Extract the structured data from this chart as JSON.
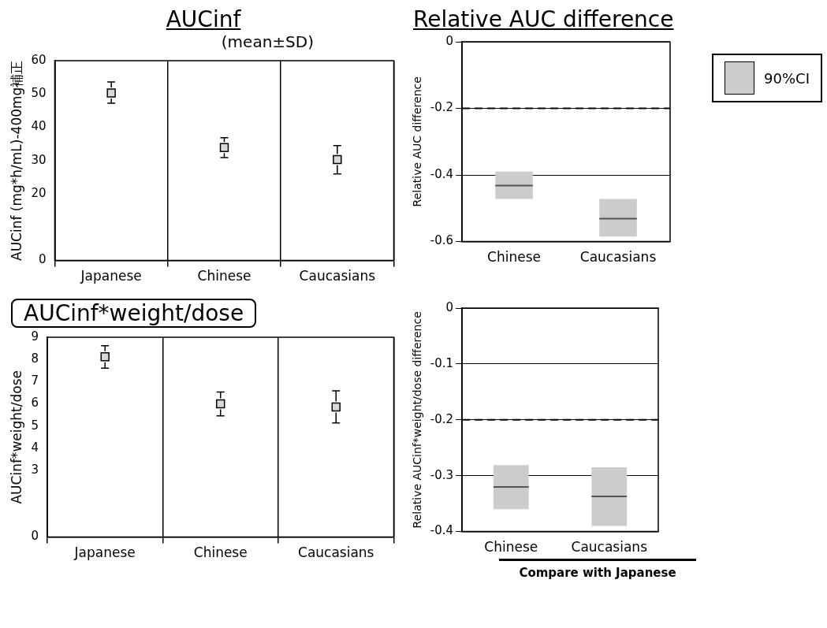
{
  "chart_data": [
    {
      "type": "scatter",
      "title": "AUCinf",
      "subtitle": "(mean±SD)",
      "ylabel": "AUCinf (mg*h/mL)-400mg補正",
      "categories": [
        "Japanese",
        "Chinese",
        "Caucasians"
      ],
      "values": [
        50.3,
        33.9,
        30.3
      ],
      "errors": [
        [
          47.2,
          53.6
        ],
        [
          30.9,
          36.9
        ],
        [
          26.0,
          34.5
        ]
      ],
      "color": "#d9d9d9",
      "marker": "square",
      "ylim": [
        0,
        60
      ],
      "yticks": [
        0,
        20,
        30,
        40,
        50,
        60
      ],
      "grid": "x"
    },
    {
      "type": "box",
      "title": "Relative AUC difference",
      "ylabel": "Relative AUC difference",
      "categories": [
        "Chinese",
        "Caucasians"
      ],
      "series": [
        {
          "name": "90%CI",
          "color": "#cccccc",
          "boxes": [
            {
              "low": -0.472,
              "q1": -0.472,
              "median": -0.432,
              "q3": -0.39,
              "high": -0.39
            },
            {
              "low": -0.585,
              "q1": -0.585,
              "median": -0.531,
              "q3": -0.472,
              "high": -0.472
            }
          ]
        }
      ],
      "ylim": [
        -0.6,
        0
      ],
      "yticks": [
        -0.6,
        -0.4,
        -0.2,
        0
      ],
      "grid": "y",
      "ref_lines": [
        {
          "axis": "y",
          "value": -0.2,
          "line_style": "dashed"
        }
      ],
      "legend": "top right"
    },
    {
      "type": "scatter",
      "title": "AUCinf*weight/dose",
      "ylabel": "AUCinf*weight/dose",
      "categories": [
        "Japanese",
        "Chinese",
        "Caucasians"
      ],
      "values": [
        8.12,
        6.0,
        5.86
      ],
      "errors": [
        [
          7.61,
          8.62
        ],
        [
          5.46,
          6.53
        ],
        [
          5.14,
          6.59
        ]
      ],
      "color": "#d9d9d9",
      "marker": "square",
      "ylim": [
        0,
        9
      ],
      "yticks": [
        0,
        3,
        4,
        5,
        6,
        7,
        8,
        9
      ],
      "grid": "x"
    },
    {
      "type": "box",
      "ylabel": "Relative AUCinf*weight/dose difference",
      "xlabel": "Compare with Japanese",
      "categories": [
        "Chinese",
        "Caucasians"
      ],
      "series": [
        {
          "color": "#cccccc",
          "boxes": [
            {
              "low": -0.36,
              "q1": -0.36,
              "median": -0.32,
              "q3": -0.281,
              "high": -0.281
            },
            {
              "low": -0.39,
              "q1": -0.39,
              "median": -0.337,
              "q3": -0.285,
              "high": -0.285
            }
          ]
        }
      ],
      "ylim": [
        -0.4,
        0
      ],
      "yticks": [
        -0.4,
        -0.3,
        -0.2,
        -0.1,
        0
      ],
      "grid": "y",
      "ref_lines": [
        {
          "axis": "y",
          "value": -0.2,
          "line_style": "dashed"
        }
      ]
    }
  ]
}
